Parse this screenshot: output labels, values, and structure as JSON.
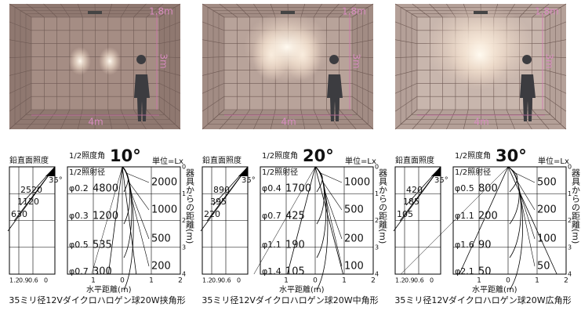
{
  "panels": [
    {
      "room": {
        "ceiling": "1.8m",
        "height": "3m",
        "width": "4m"
      },
      "diagram": {
        "vertical_title": "鉛直面照度",
        "vertical_values": [
          "2520",
          "1120",
          "630"
        ],
        "vertical_angle": "35°",
        "angle_label": "1/2照度角",
        "angle": "10°",
        "unit": "単位=Lx",
        "diameter_label": "1/2照射径",
        "diameters": [
          "φ0.2",
          "φ0.3",
          "φ0.5",
          "φ0.7"
        ],
        "center_values": [
          "4800",
          "1200",
          "535",
          "300"
        ],
        "contour_values": [
          "2000",
          "1000",
          "500",
          "200"
        ],
        "distance_ticks": [
          "0",
          "1",
          "2",
          "3",
          "4"
        ],
        "distance_label": "器具からの距離(m)",
        "left_ticks": [
          "1.2",
          "0.9",
          "0.6",
          "0"
        ],
        "bottom_ticks": [
          "1",
          "0",
          "1",
          "2"
        ],
        "horizontal_label": "水平距離(m)"
      },
      "caption": "35ミリ径12Vダイクロハロゲン球20W挟角形"
    },
    {
      "room": {
        "ceiling": "1.8m",
        "height": "3m",
        "width": "4m"
      },
      "diagram": {
        "vertical_title": "鉛直面照度",
        "vertical_values": [
          "890",
          "395",
          "220"
        ],
        "vertical_angle": "35°",
        "angle_label": "1/2照度角",
        "angle": "20°",
        "unit": "単位=Lx",
        "diameter_label": "1/2照射径",
        "diameters": [
          "φ0.4",
          "φ0.7",
          "φ1.1",
          "φ1.4"
        ],
        "center_values": [
          "1700",
          "425",
          "190",
          "105"
        ],
        "contour_values": [
          "1000",
          "500",
          "200",
          "100"
        ],
        "distance_ticks": [
          "0",
          "1",
          "2",
          "3",
          "4"
        ],
        "distance_label": "器具からの距離(m)",
        "left_ticks": [
          "1.2",
          "0.9",
          "0.6",
          "0"
        ],
        "bottom_ticks": [
          "1",
          "0",
          "1",
          "2"
        ],
        "horizontal_label": "水平距離(m)"
      },
      "caption": "35ミリ径12Vダイクロハロゲン球20W中角形"
    },
    {
      "room": {
        "ceiling": "1.8m",
        "height": "3m",
        "width": "4m"
      },
      "diagram": {
        "vertical_title": "鉛直面照度",
        "vertical_values": [
          "420",
          "185",
          "105"
        ],
        "vertical_angle": "35°",
        "angle_label": "1/2照度角",
        "angle": "30°",
        "unit": "単位=Lx",
        "diameter_label": "1/2照射径",
        "diameters": [
          "φ0.5",
          "φ1.1",
          "φ1.6",
          "φ2.1"
        ],
        "center_values": [
          "800",
          "200",
          "90",
          "50"
        ],
        "contour_values": [
          "500",
          "200",
          "100",
          "50"
        ],
        "distance_ticks": [
          "0",
          "1",
          "2",
          "3",
          "4"
        ],
        "distance_label": "器具からの距離(m)",
        "left_ticks": [
          "1.2",
          "0.9",
          "0.6",
          "0"
        ],
        "bottom_ticks": [
          "1",
          "0",
          "1",
          "2"
        ],
        "horizontal_label": "水平距離(m)"
      },
      "caption": "35ミリ径12Vダイクロハロゲン球20W広角形"
    }
  ]
}
